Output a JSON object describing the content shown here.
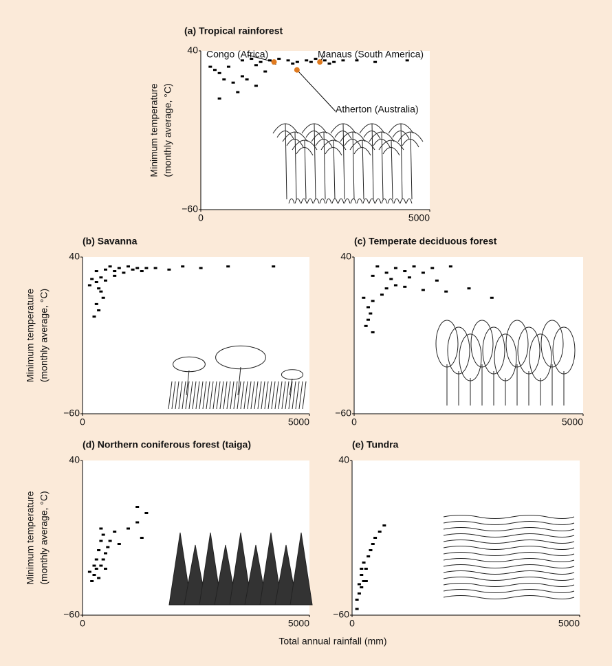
{
  "chart_data": [
    {
      "type": "scatter",
      "title": "(a) Tropical rainforest",
      "y_label": [
        "Minimum temperature",
        "(monthly average, °C)"
      ],
      "color": "#000000",
      "xlim": [
        0,
        5000
      ],
      "ylim": [
        -60,
        40
      ],
      "xticks": [
        0,
        5000
      ],
      "yticks": [
        {
          "value": 40,
          "label": "40"
        },
        {
          "value": -60,
          "label": "−60"
        }
      ],
      "x": [
        900,
        1100,
        1300,
        1500,
        1700,
        1900,
        2100,
        2300,
        2500,
        2700,
        2900,
        3100,
        1200,
        1600,
        2000,
        2400,
        2800,
        3400,
        3800,
        600,
        400,
        500,
        700,
        300,
        900,
        1200,
        400,
        800,
        1000,
        1400,
        4500,
        200
      ],
      "values": [
        34,
        35,
        33,
        34,
        35,
        34,
        33,
        34,
        35,
        34,
        33,
        34,
        31,
        32,
        32,
        33,
        32,
        34,
        33,
        30,
        26,
        22,
        20,
        28,
        24,
        18,
        10,
        14,
        22,
        27,
        34,
        30
      ],
      "annotations": [
        {
          "text": "Congo (Africa)",
          "x": 1600,
          "y": 33,
          "color": "#e07a1f"
        },
        {
          "text": "Manaus (South America)",
          "x": 2600,
          "y": 33,
          "color": "#e07a1f"
        },
        {
          "text": "Atherton (Australia)",
          "x": 2100,
          "y": 28,
          "color": "#e07a1f"
        }
      ]
    },
    {
      "type": "scatter",
      "title": "(b) Savanna",
      "y_label": [
        "Minimum temperature",
        "(monthly average, °C)"
      ],
      "color": "#000000",
      "xlim": [
        0,
        5000
      ],
      "ylim": [
        -60,
        40
      ],
      "xticks": [
        0,
        5000
      ],
      "yticks": [
        {
          "value": 40,
          "label": "40"
        },
        {
          "value": -60,
          "label": "−60"
        }
      ],
      "x": [
        600,
        800,
        1000,
        1200,
        1400,
        700,
        900,
        1100,
        1600,
        500,
        300,
        200,
        300,
        400,
        500,
        150,
        350,
        400,
        300,
        350,
        250,
        450,
        1900,
        2200,
        2600,
        3200,
        4200,
        700,
        1300
      ],
      "values": [
        34,
        33,
        34,
        33,
        33,
        31,
        30,
        32,
        33,
        32,
        31,
        26,
        24,
        27,
        25,
        22,
        20,
        18,
        10,
        6,
        2,
        14,
        32,
        34,
        33,
        34,
        34,
        28,
        31
      ]
    },
    {
      "type": "scatter",
      "title": "(c) Temperate deciduous forest",
      "color": "#000000",
      "xlim": [
        0,
        5000
      ],
      "ylim": [
        -60,
        40
      ],
      "xticks": [
        0,
        5000
      ],
      "yticks": [
        {
          "value": 40,
          "label": "40"
        },
        {
          "value": -60,
          "label": "−60"
        }
      ],
      "x": [
        500,
        900,
        1300,
        1700,
        2100,
        700,
        1100,
        1500,
        400,
        800,
        1200,
        900,
        700,
        1100,
        1500,
        600,
        400,
        300,
        350,
        300,
        250,
        400,
        2000,
        2500,
        3000,
        200,
        1800
      ],
      "values": [
        34,
        33,
        34,
        33,
        34,
        30,
        31,
        30,
        28,
        26,
        27,
        22,
        20,
        21,
        19,
        16,
        12,
        8,
        4,
        0,
        -4,
        -8,
        18,
        20,
        14,
        14,
        25
      ]
    },
    {
      "type": "scatter",
      "title": "(d) Northern coniferous forest (taiga)",
      "y_label": [
        "Minimum temperature",
        "(monthly average, °C)"
      ],
      "color": "#000000",
      "xlim": [
        0,
        5000
      ],
      "ylim": [
        -60,
        40
      ],
      "xticks": [
        0,
        5000
      ],
      "yticks": [
        {
          "value": 40,
          "label": "40"
        },
        {
          "value": -60,
          "label": "−60"
        }
      ],
      "x": [
        200,
        250,
        300,
        350,
        400,
        450,
        500,
        550,
        300,
        350,
        400,
        450,
        250,
        500,
        600,
        700,
        800,
        1000,
        1200,
        1300,
        1400,
        1200,
        400,
        150
      ],
      "values": [
        -38,
        -34,
        -30,
        -36,
        -28,
        -24,
        -20,
        -16,
        -24,
        -18,
        -12,
        -8,
        -28,
        -30,
        -12,
        -6,
        -14,
        -4,
        0,
        -10,
        6,
        10,
        -4,
        -32
      ]
    },
    {
      "type": "scatter",
      "title": "(e) Tundra",
      "color": "#000000",
      "xlim": [
        0,
        5000
      ],
      "ylim": [
        -60,
        40
      ],
      "xticks": [
        0,
        5000
      ],
      "yticks": [
        {
          "value": 40,
          "label": "40"
        },
        {
          "value": -60,
          "label": "−60"
        }
      ],
      "x": [
        100,
        150,
        200,
        250,
        150,
        200,
        300,
        250,
        350,
        400,
        450,
        500,
        600,
        700,
        300,
        100,
        200
      ],
      "values": [
        -50,
        -46,
        -42,
        -38,
        -40,
        -34,
        -30,
        -26,
        -22,
        -18,
        -14,
        -10,
        -6,
        -2,
        -38,
        -56,
        -30
      ]
    }
  ],
  "x_label": "Total annual rainfall (mm)"
}
